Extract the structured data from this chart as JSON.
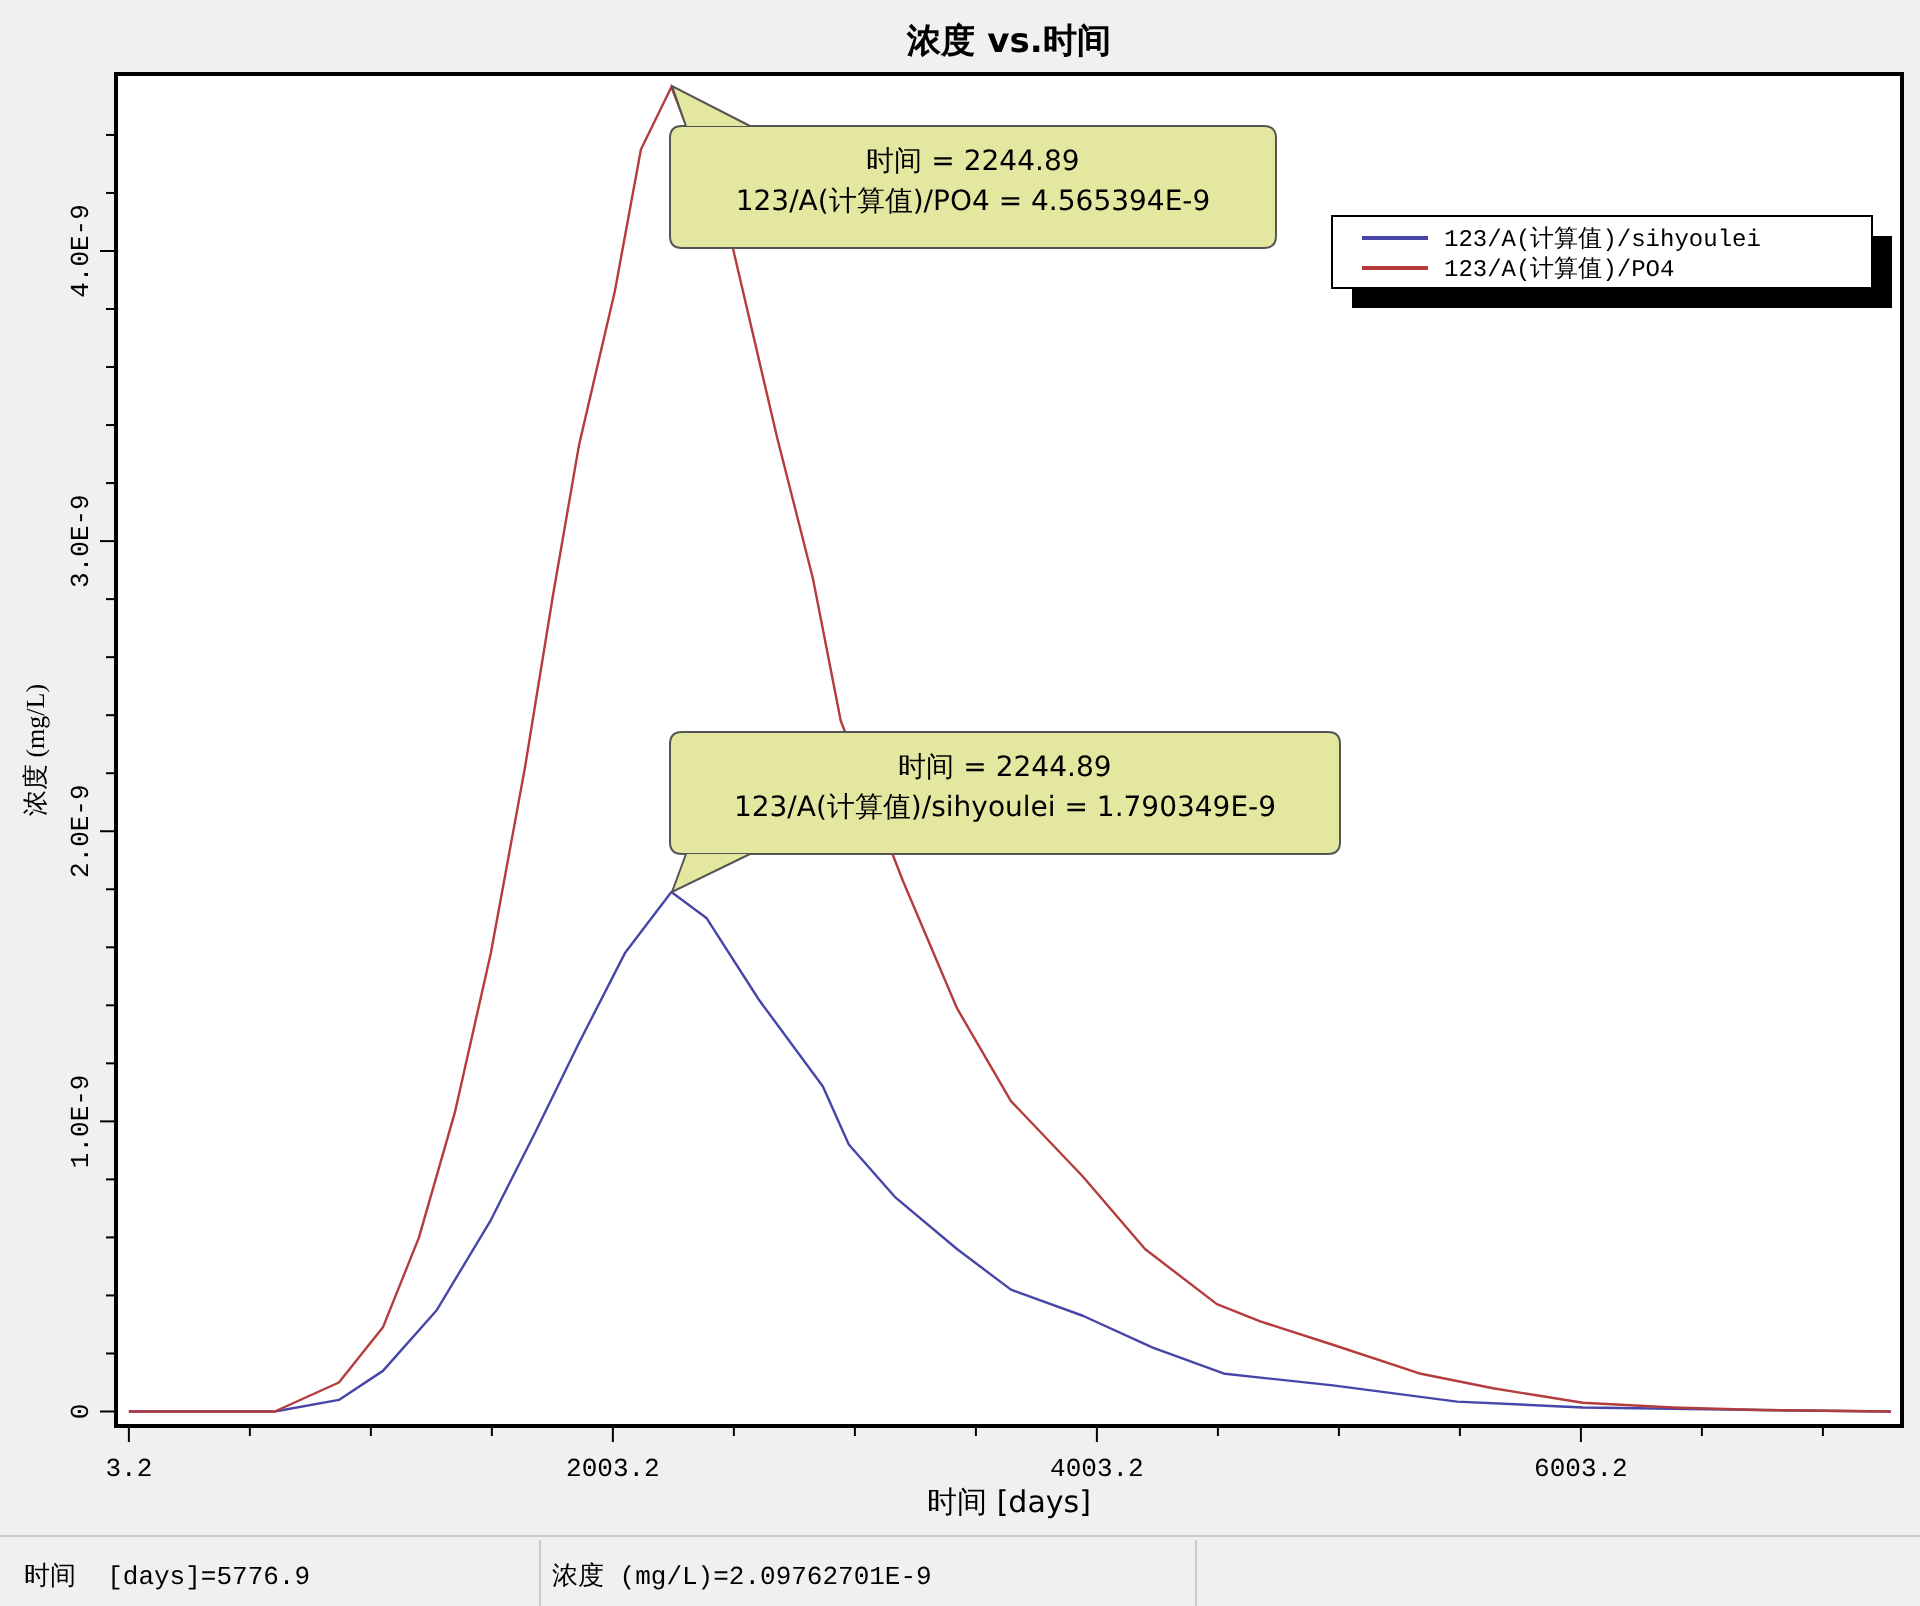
{
  "chart_data": {
    "type": "line",
    "title": "浓度 vs.时间",
    "xlabel": "时间 [days]",
    "ylabel": "浓度 (mg/L)",
    "xlim": [
      -50,
      7330
    ],
    "xticks": [
      3.2,
      {
        "value": 503.2,
        "label": null
      },
      {
        "value": 1003.2,
        "label": null
      },
      {
        "value": 1503.2,
        "label": null
      },
      2003.2,
      {
        "value": 2503.2,
        "label": null
      },
      {
        "value": 3003.2,
        "label": null
      },
      {
        "value": 3503.2,
        "label": null
      },
      4003.2,
      {
        "value": 4503.2,
        "label": null
      },
      {
        "value": 5003.2,
        "label": null
      },
      {
        "value": 5503.2,
        "label": null
      },
      6003.2,
      {
        "value": 6503.2,
        "label": null
      },
      {
        "value": 7003.2,
        "label": null
      }
    ],
    "ylim": [
      -5e-11,
      4.61e-09
    ],
    "yticks": [
      0,
      {
        "value": 2e-10,
        "label": null
      },
      {
        "value": 4e-10,
        "label": null
      },
      {
        "value": 6e-10,
        "label": null
      },
      {
        "value": 8e-10,
        "label": null
      },
      {
        "value": 1e-09,
        "label": "1.0E-9"
      },
      {
        "value": 1.2e-09,
        "label": null
      },
      {
        "value": 1.4e-09,
        "label": null
      },
      {
        "value": 1.6e-09,
        "label": null
      },
      {
        "value": 1.8e-09,
        "label": null
      },
      {
        "value": 2e-09,
        "label": "2.0E-9"
      },
      {
        "value": 2.2e-09,
        "label": null
      },
      {
        "value": 2.4e-09,
        "label": null
      },
      {
        "value": 2.6e-09,
        "label": null
      },
      {
        "value": 2.8e-09,
        "label": null
      },
      {
        "value": 3e-09,
        "label": "3.0E-9"
      },
      {
        "value": 3.2e-09,
        "label": null
      },
      {
        "value": 3.4e-09,
        "label": null
      },
      {
        "value": 3.6e-09,
        "label": null
      },
      {
        "value": 3.8e-09,
        "label": null
      },
      {
        "value": 4e-09,
        "label": "4.0E-9"
      },
      {
        "value": 4.2e-09,
        "label": null
      },
      {
        "value": 4.4e-09,
        "label": null
      }
    ],
    "grid": false,
    "legend": "top right",
    "marker": "none",
    "line_style": "solid",
    "series": [
      {
        "name": "123/A(计算值)/sihyoulei",
        "color": "#4646a8",
        "x": [
          3.2,
          606,
          871,
          1053,
          1276,
          1499,
          1681,
          1863,
          2053,
          2244.89,
          2391,
          2606,
          2871,
          2978,
          3168,
          3425,
          3648,
          3945,
          4234,
          4532,
          4978,
          5491,
          6011,
          6747,
          7284
        ],
        "values": [
          0,
          0,
          4e-11,
          1.4e-10,
          3.5e-10,
          6.6e-10,
          9.6e-10,
          1.27e-09,
          1.58e-09,
          1.790349e-09,
          1.7e-09,
          1.42e-09,
          1.12e-09,
          9.2e-10,
          7.4e-10,
          5.6e-10,
          4.2e-10,
          3.3e-10,
          2.2e-10,
          1.3e-10,
          9e-11,
          3.4e-11,
          1.4e-11,
          5e-12,
          0
        ]
      },
      {
        "name": "123/A(计算值)/PO4",
        "color": "#b43c3c",
        "x": [
          3.2,
          606,
          871,
          1053,
          1202,
          1350,
          1499,
          1640,
          1755,
          1863,
          2011,
          2119,
          2244.89,
          2499,
          2681,
          2830,
          2945,
          3201,
          3425,
          3648,
          3945,
          4202,
          4499,
          4681,
          4978,
          5342,
          5640,
          6011,
          6383,
          6747,
          7284
        ],
        "values": [
          0,
          0,
          1e-10,
          2.9e-10,
          6e-10,
          1.03e-09,
          1.58e-09,
          2.22e-09,
          2.81e-09,
          3.33e-09,
          3.86e-09,
          4.35e-09,
          4.565394e-09,
          4.01e-09,
          3.36e-09,
          2.87e-09,
          2.38e-09,
          1.83e-09,
          1.39e-09,
          1.07e-09,
          8.1e-10,
          5.6e-10,
          3.7e-10,
          3.1e-10,
          2.3e-10,
          1.3e-10,
          8e-11,
          3e-11,
          1.4e-11,
          5e-12,
          0
        ]
      }
    ],
    "annotations": [
      "时间 = 2244.89\n123/A(计算值)/PO4 = 4.565394E-9",
      "时间 = 2244.89\n123/A(计算值)/sihyoulei = 1.790349E-9",
      "时间  [days]=5776.9",
      "浓度 (mg/L)=2.09762701E-9"
    ]
  }
}
